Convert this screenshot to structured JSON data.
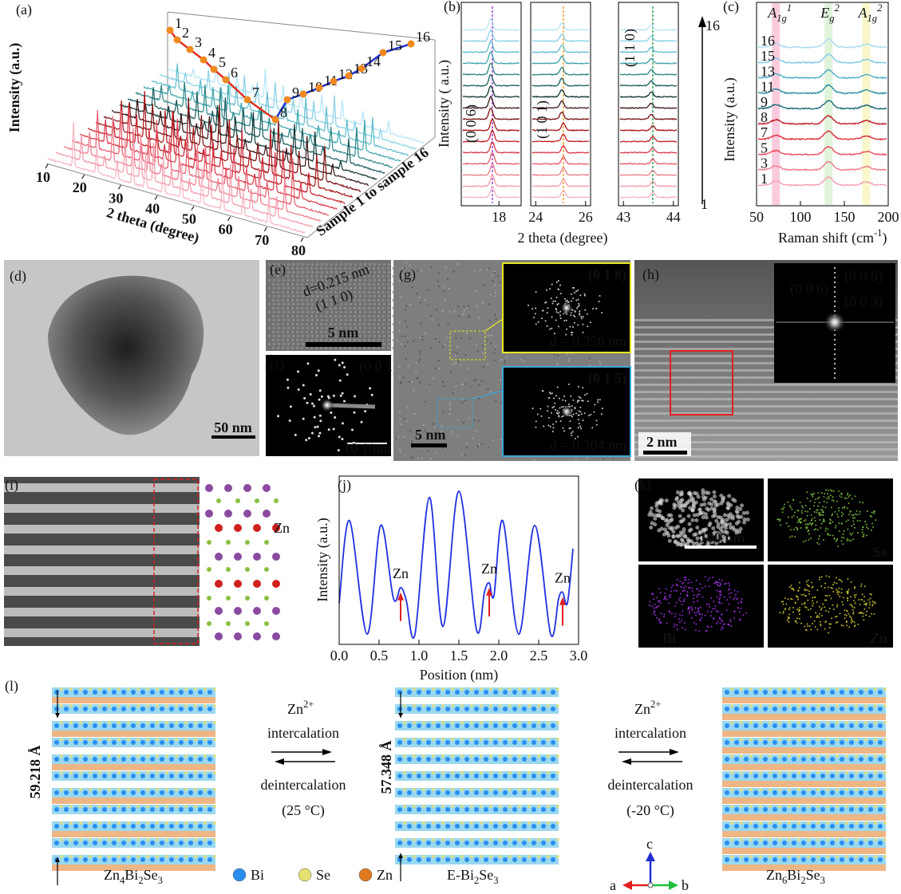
{
  "a": {
    "label": "(a)",
    "ylabel": "Intensity (a.u.)",
    "xlabel": "2 theta (degree)",
    "depth_label": "Sample 1 to sample 16",
    "xlim": [
      10,
      80
    ],
    "xticks": [
      10,
      20,
      30,
      40,
      50,
      60,
      70,
      80
    ],
    "samples": [
      "1",
      "2",
      "3",
      "4",
      "5",
      "6",
      "7",
      "8",
      "9",
      "10",
      "11",
      "12",
      "13",
      "14",
      "15",
      "16"
    ],
    "colors": [
      "#f6b3c0",
      "#f29aa8",
      "#ec7d8c",
      "#e45a6a",
      "#d93848",
      "#c8202c",
      "#a81418",
      "#7a1010",
      "#3a1414",
      "#0f3434",
      "#1a5c5c",
      "#2a8484",
      "#3ca4ac",
      "#5cbccc",
      "#84d0e4",
      "#b4e4f6"
    ]
  },
  "b": {
    "label": "(b)",
    "ylabel": "Intensity ( a.u.)",
    "xlabel": "2 theta (degree)",
    "arrow_top": "16",
    "arrow_bottom": "1",
    "panels": [
      {
        "peak": "(0 0 6)",
        "xlim": [
          16.3,
          19
        ],
        "xticks": [
          18
        ],
        "line_color": "#a040d8"
      },
      {
        "peak": "(1 0 1)",
        "xlim": [
          23.8,
          26.2
        ],
        "xticks": [
          24,
          26
        ],
        "line_color": "#f0a030"
      },
      {
        "peak": "(1 1 0)",
        "xlim": [
          42.9,
          44.1
        ],
        "xticks": [
          43,
          44
        ],
        "line_color": "#30a050"
      }
    ]
  },
  "c": {
    "label": "(c)",
    "ylabel": "Intensity (a.u.)",
    "xlabel": [
      "Raman shift (cm",
      "-1",
      ")"
    ],
    "xlim": [
      50,
      200
    ],
    "xticks": [
      50,
      100,
      150,
      200
    ],
    "modes": [
      {
        "name": [
          "A",
          "1g",
          "1"
        ],
        "shift": 72,
        "color": "#f48cb4"
      },
      {
        "name": [
          "E",
          "g",
          "2"
        ],
        "shift": 132,
        "color": "#b8e6b0"
      },
      {
        "name": [
          "A",
          "1g",
          "2"
        ],
        "shift": 175,
        "color": "#f4f08c"
      }
    ],
    "samples": [
      "16",
      "15",
      "13",
      "11",
      "9",
      "8",
      "7",
      "5",
      "3",
      "1"
    ],
    "colors": [
      "#a8dcf0",
      "#80c8e8",
      "#50b0c8",
      "#2a90a0",
      "#1a6a78",
      "#c0202a",
      "#e03040",
      "#e85060",
      "#f07888",
      "#f4a0b0"
    ]
  },
  "d": {
    "label": "(d)",
    "scale": "50 nm"
  },
  "e": {
    "label": "(e)",
    "d": "d=0.215 nm",
    "plane": "(1 1 0)",
    "scale": "5 nm"
  },
  "f": {
    "label": "(f)",
    "zone": "(0 0 1)",
    "scale": "10 1/nm"
  },
  "g": {
    "label": "(g)",
    "scale": "5 nm",
    "insets": [
      {
        "plane": "(0 1 8)",
        "d": "d = 0.256 nm"
      },
      {
        "plane": "(0 1 5)",
        "d": "d = 0.304 nm"
      }
    ]
  },
  "h": {
    "label": "(h)",
    "scale": "2 nm",
    "spots": [
      "(0 0 9)",
      "(0 0 6)",
      "(0 0 3)"
    ]
  },
  "i": {
    "label": "(i)",
    "atom": "Zn"
  },
  "j": {
    "label": "(j)",
    "ylabel": "Intensity (a.u.)",
    "xlabel": "Position (nm)",
    "color": "#2030e0",
    "xlim": [
      0,
      3
    ],
    "xticks": [
      {
        "value": 0,
        "label": "0.0"
      },
      {
        "value": 0.5,
        "label": "0.5"
      },
      {
        "value": 1,
        "label": "1.0"
      },
      {
        "value": 1.5,
        "label": "1.5"
      },
      {
        "value": 2,
        "label": "2.0"
      },
      {
        "value": 2.5,
        "label": "2.5"
      },
      {
        "value": 3,
        "label": "3.0"
      }
    ],
    "x": [
      0.0,
      0.13,
      0.35,
      0.52,
      0.68,
      0.77,
      0.84,
      0.95,
      1.13,
      1.3,
      1.5,
      1.72,
      1.82,
      1.88,
      1.94,
      2.05,
      2.25,
      2.45,
      2.65,
      2.75,
      2.8,
      2.86,
      2.93
    ],
    "values": [
      0.25,
      0.78,
      0.05,
      0.75,
      0.28,
      0.35,
      0.27,
      0.05,
      0.93,
      0.1,
      0.97,
      0.08,
      0.32,
      0.38,
      0.3,
      0.78,
      0.05,
      0.75,
      0.05,
      0.28,
      0.32,
      0.25,
      0.6
    ],
    "markers": [
      {
        "text": "Zn",
        "x": 0.77
      },
      {
        "text": "Zn",
        "x": 1.88
      },
      {
        "text": "Zn",
        "x": 2.8
      }
    ]
  },
  "k": {
    "label": "(k)",
    "scale": "100 nm",
    "maps": [
      "Se",
      "Bi",
      "Zn"
    ]
  },
  "l": {
    "label": "(l)",
    "ion": [
      "Zn",
      "2+"
    ],
    "forward": "intercalation",
    "backward": "deintercalation",
    "left_temp": "(25 °C)",
    "right_temp": "(-20 °C)",
    "left_c": "59.218 Å",
    "mid_c": "57.348 Å",
    "formulas": [
      [
        "Zn",
        "4",
        "Bi",
        "2",
        "Se",
        "3"
      ],
      [
        "E-Bi",
        "2",
        "Se",
        "3"
      ],
      [
        "Zn",
        "6",
        "Bi",
        "2",
        "Se",
        "3"
      ]
    ],
    "legend": [
      {
        "name": "Bi",
        "color": "#2a8ef0"
      },
      {
        "name": "Se",
        "color": "#e6e070"
      },
      {
        "name": "Zn",
        "color": "#e07820"
      }
    ],
    "axes": [
      "a",
      "b",
      "c"
    ]
  }
}
